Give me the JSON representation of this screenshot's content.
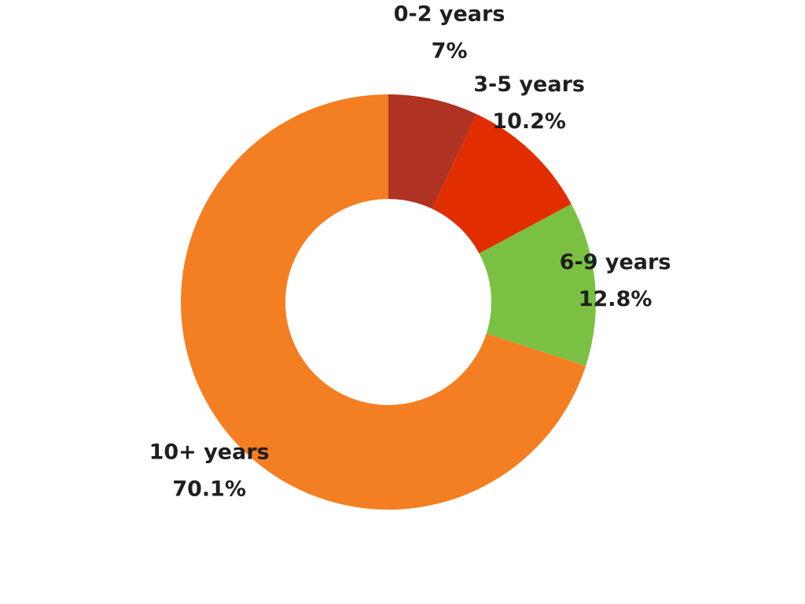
{
  "chart_data": {
    "type": "pie",
    "variant": "donut",
    "title": "",
    "legend": "none",
    "categories": [
      "0-2 years",
      "3-5 years",
      "6-9 years",
      "10+ years"
    ],
    "values": [
      7,
      10.2,
      12.8,
      70.1
    ],
    "value_labels": [
      "7%",
      "10.2%",
      "12.8%",
      "70.1%"
    ],
    "unit": "%",
    "colors": [
      "#b03222",
      "#e22d00",
      "#7ac143",
      "#f47e22"
    ]
  }
}
